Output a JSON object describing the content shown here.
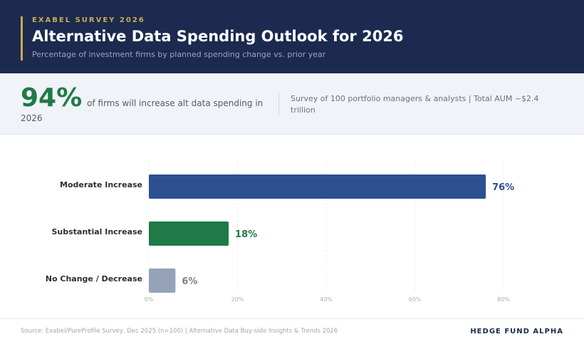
{
  "header": {
    "eyebrow": "EXABEL SURVEY 2026",
    "title": "Alternative Data Spending Outlook for 2026",
    "subtitle": "Percentage of investment firms by planned spending change vs. prior year"
  },
  "stats": {
    "big": "94%",
    "text_line1": "of firms will increase alt data spending in",
    "text_line2": "2026",
    "survey": "Survey of 100 portfolio managers & analysts | Total AUM ~$2.4 trillion"
  },
  "chart_data": {
    "type": "bar",
    "orientation": "horizontal",
    "categories": [
      "Moderate Increase",
      "Substantial Increase",
      "No Change / Decrease"
    ],
    "values": [
      76,
      18,
      6
    ],
    "data_labels": [
      "76%",
      "18%",
      "6%"
    ],
    "colors": [
      "#2d5090",
      "#1e7a46",
      "#94a3b8"
    ],
    "xlim": [
      0,
      80
    ],
    "xticks": [
      "0%",
      "20%",
      "40%",
      "60%",
      "80%"
    ],
    "grid": true
  },
  "footer": {
    "source": "Source: Exabel/PureProfile Survey, Dec 2025 (n=100) | Alternative Data Buy-side Insights & Trends 2026",
    "brand": "HEDGE FUND ALPHA"
  }
}
